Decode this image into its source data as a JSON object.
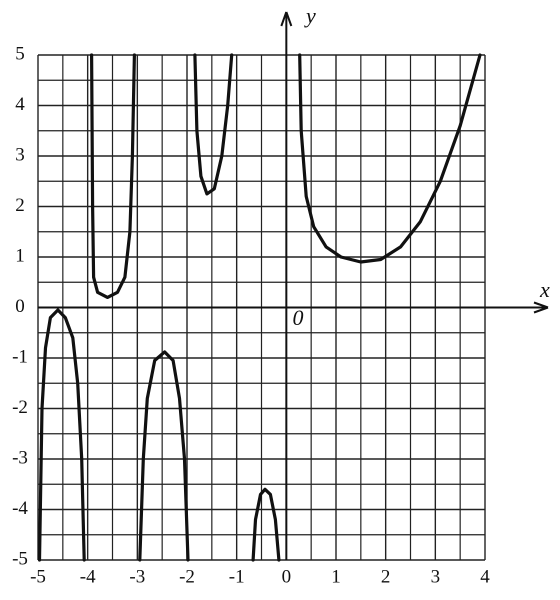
{
  "chart_data": {
    "type": "line",
    "x_label": "x",
    "y_label": "y",
    "origin_label": "0",
    "xlim": [
      -5,
      4
    ],
    "ylim": [
      -5,
      5
    ],
    "xticks": [
      -5,
      -4,
      -3,
      -2,
      -1,
      0,
      1,
      2,
      3,
      4
    ],
    "yticks": [
      -5,
      -4,
      -3,
      -2,
      -1,
      0,
      1,
      2,
      3,
      4,
      5
    ],
    "xminor": [
      -4.5,
      -3.5,
      -2.5,
      -1.5,
      -0.5,
      0.5,
      1.5,
      2.5,
      3.5
    ],
    "yminor": [
      -4.5,
      -3.5,
      -2.5,
      -1.5,
      -0.5,
      0.5,
      1.5,
      2.5,
      3.5,
      4.5
    ],
    "grid": true,
    "series": [
      {
        "color": "#111111",
        "x": [
          -4.97,
          -4.92,
          -4.85,
          -4.75,
          -4.6,
          -4.45,
          -4.3,
          -4.2,
          -4.12,
          -4.07
        ],
        "values": [
          -5,
          -2,
          -0.8,
          -0.2,
          -0.05,
          -0.2,
          -0.6,
          -1.5,
          -3,
          -5
        ]
      },
      {
        "color": "#111111",
        "x": [
          -3.92,
          -3.9,
          -3.88,
          -3.8,
          -3.6,
          -3.4,
          -3.25,
          -3.15,
          -3.1,
          -3.06
        ],
        "values": [
          5,
          2,
          0.6,
          0.3,
          0.2,
          0.3,
          0.6,
          1.5,
          3,
          5
        ]
      },
      {
        "color": "#111111",
        "x": [
          -2.95,
          -2.88,
          -2.8,
          -2.65,
          -2.45,
          -2.28,
          -2.15,
          -2.05,
          -1.98
        ],
        "values": [
          -5,
          -3,
          -1.8,
          -1.05,
          -0.88,
          -1.05,
          -1.8,
          -3,
          -5
        ]
      },
      {
        "color": "#111111",
        "x": [
          -1.84,
          -1.8,
          -1.72,
          -1.6,
          -1.45,
          -1.3,
          -1.18,
          -1.1
        ],
        "values": [
          5,
          3.5,
          2.6,
          2.25,
          2.35,
          3,
          4,
          5
        ]
      },
      {
        "color": "#111111",
        "x": [
          -0.67,
          -0.62,
          -0.52,
          -0.43,
          -0.32,
          -0.22,
          -0.15
        ],
        "values": [
          -5,
          -4.2,
          -3.7,
          -3.6,
          -3.7,
          -4.2,
          -5
        ]
      },
      {
        "color": "#111111",
        "x": [
          0.27,
          0.3,
          0.4,
          0.55,
          0.8,
          1.1,
          1.5,
          1.9,
          2.3,
          2.7,
          3.1,
          3.5,
          3.9
        ],
        "values": [
          5,
          3.5,
          2.2,
          1.6,
          1.2,
          1.0,
          0.9,
          0.95,
          1.2,
          1.7,
          2.5,
          3.6,
          5
        ]
      }
    ]
  }
}
